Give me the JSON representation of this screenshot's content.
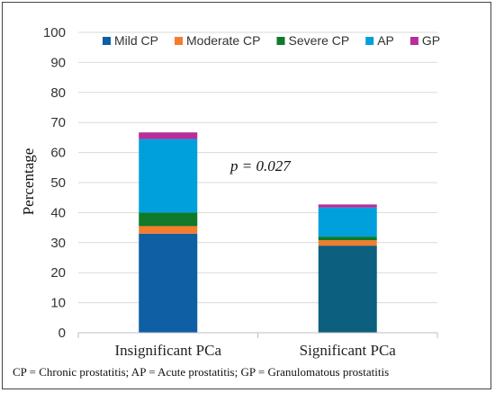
{
  "chart_data": {
    "type": "bar",
    "stacked": true,
    "categories": [
      "Insignificant PCa",
      "Significant PCa"
    ],
    "series": [
      {
        "name": "Mild CP",
        "values": [
          33,
          29
        ],
        "colors": [
          "#0E5FA3",
          "#0C5F7E"
        ]
      },
      {
        "name": "Moderate CP",
        "values": [
          2.5,
          1.8
        ],
        "color": "#F47C2C"
      },
      {
        "name": "Severe CP",
        "values": [
          4.5,
          1.2
        ],
        "color": "#0E7A2A"
      },
      {
        "name": "AP",
        "values": [
          24.5,
          9.7
        ],
        "color": "#00A0DC"
      },
      {
        "name": "GP",
        "values": [
          2.2,
          1.0
        ],
        "color": "#B62D9B"
      }
    ],
    "ylabel": "Percentage",
    "ylim": [
      0,
      100
    ],
    "yticks": [
      0,
      10,
      20,
      30,
      40,
      50,
      60,
      70,
      80,
      90,
      100
    ],
    "grid": true,
    "legend": "top",
    "annotation": "p = 0.027",
    "footnote": "CP = Chronic prostatitis; AP = Acute prostatitis; GP = Granulomatous prostatitis"
  }
}
